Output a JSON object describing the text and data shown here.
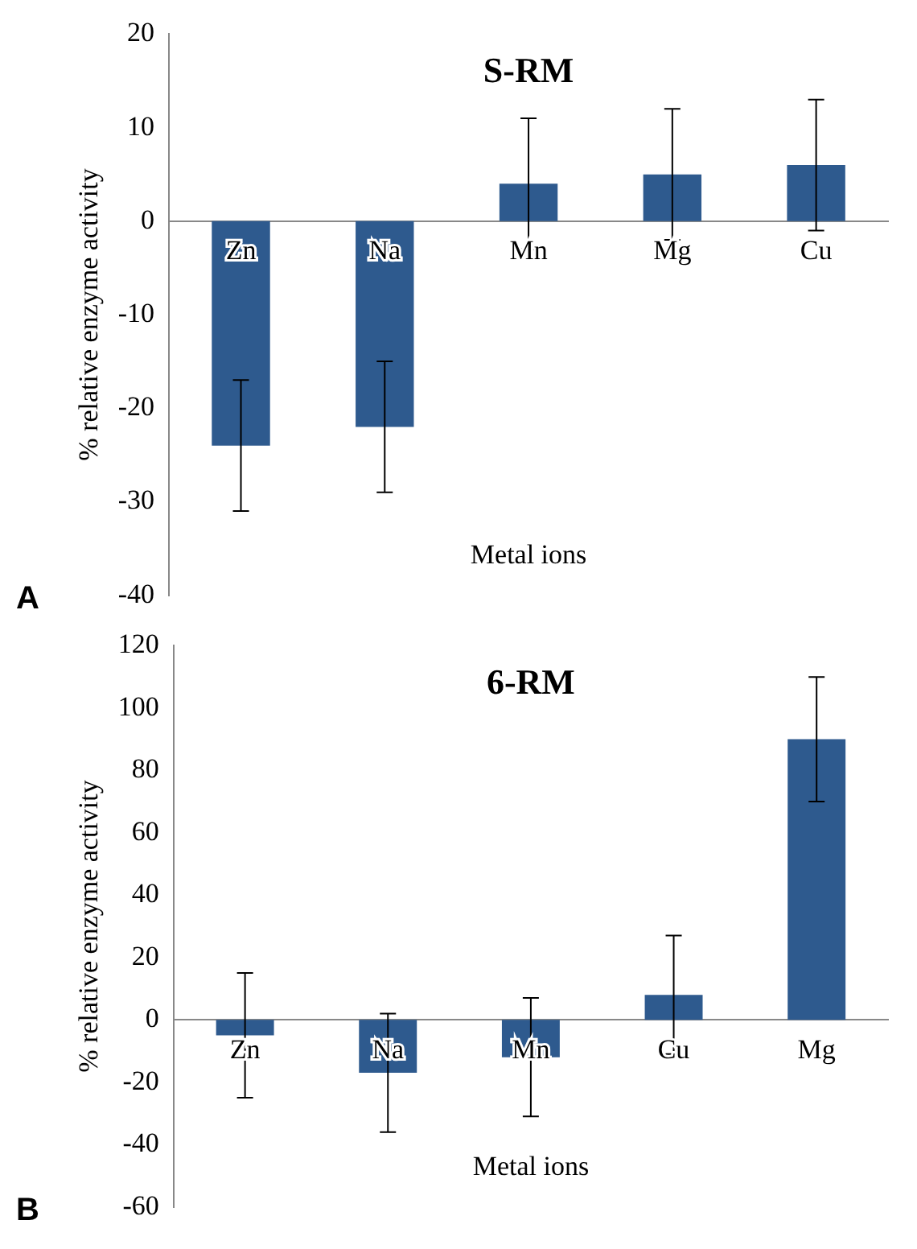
{
  "chart_data": [
    {
      "type": "bar",
      "title": "S-RM",
      "xlabel": "Metal ions",
      "ylabel": "% relative enzyme activity",
      "annotations": [
        "A"
      ],
      "categories": [
        "Zn",
        "Na",
        "Mn",
        "Mg",
        "Cu"
      ],
      "values": [
        -24,
        -22,
        4,
        5,
        6
      ],
      "errors": [
        7,
        7,
        7,
        7,
        7
      ],
      "color": "#2e5a8e",
      "ylim": [
        -40,
        20
      ],
      "yticks": [
        -40,
        -30,
        -20,
        -10,
        0,
        10,
        20
      ],
      "grid": false,
      "legend": false
    },
    {
      "type": "bar",
      "title": "6-RM",
      "xlabel": "Metal ions",
      "ylabel": "% relative enzyme activity",
      "annotations": [
        "B"
      ],
      "categories": [
        "Zn",
        "Na",
        "Mn",
        "Cu",
        "Mg"
      ],
      "values": [
        -5,
        -17,
        -12,
        8,
        90
      ],
      "errors": [
        20,
        19,
        19,
        19,
        20
      ],
      "color": "#2e5a8e",
      "ylim": [
        -60,
        120
      ],
      "yticks": [
        -60,
        -40,
        -20,
        0,
        20,
        40,
        60,
        80,
        100,
        120
      ],
      "grid": false,
      "legend": false
    }
  ]
}
